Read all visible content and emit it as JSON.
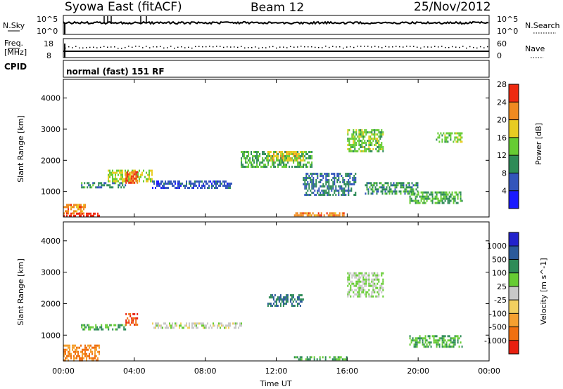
{
  "header": {
    "title": "Syowa East (fitACF)",
    "beam": "Beam 12",
    "date": "25/Nov/2012"
  },
  "noise_panel": {
    "left_label": "N.Sky",
    "right_label": "N.Search",
    "tick_top_left": "10^5",
    "tick_bottom_left": "10^0",
    "tick_top_right": "10^5",
    "tick_bottom_right": "10^0"
  },
  "freq_panel": {
    "left_label_top": "Freq.",
    "left_label_unit": "[MHz]",
    "tick_top_left": "18",
    "tick_bottom_left": "8",
    "right_label": "Nave",
    "tick_top_right": "60",
    "tick_bottom_right": "0"
  },
  "cpid": {
    "label": "CPID",
    "mode": "normal (fast) 151 RF"
  },
  "x_axis": {
    "label": "Time UT",
    "ticks": [
      "00:00",
      "04:00",
      "08:00",
      "12:00",
      "16:00",
      "20:00",
      "00:00"
    ]
  },
  "power_panel": {
    "ylabel": "Slant Range [km]",
    "yticks": [
      "1000",
      "2000",
      "3000",
      "4000"
    ],
    "colorbar_label": "Power [dB]",
    "colorbar_ticks": [
      "4",
      "8",
      "12",
      "16",
      "20",
      "24",
      "28"
    ],
    "colorbar_colors": [
      "#1a1aff",
      "#3355bb",
      "#2e8b57",
      "#66cc33",
      "#e8cc22",
      "#f08a20",
      "#ee2a10"
    ]
  },
  "velocity_panel": {
    "ylabel": "Slant Range [km]",
    "yticks": [
      "1000",
      "2000",
      "3000",
      "4000"
    ],
    "colorbar_label": "Velocity [m s^-1]",
    "colorbar_ticks": [
      "1000",
      "500",
      "100",
      "25",
      "-25",
      "-100",
      "-500",
      "-1000"
    ],
    "colorbar_colors": [
      "#2222cc",
      "#2b5a9a",
      "#2e8b57",
      "#66cc33",
      "#c8c8c8",
      "#f2d060",
      "#f5a030",
      "#f07010",
      "#e82010"
    ]
  },
  "chart_data": {
    "type": "heatmap",
    "title": "Syowa East (fitACF)",
    "xlabel": "Time UT",
    "ylabel": "Slant Range [km]",
    "x_range": [
      "00:00",
      "00:00"
    ],
    "ylim": [
      180,
      4600
    ],
    "series": [
      {
        "name": "Power [dB]",
        "regions": [
          {
            "t0": 0.0,
            "t1": 2.0,
            "r0": 230,
            "r1": 320,
            "value": 28
          },
          {
            "t0": 0.0,
            "t1": 1.2,
            "r0": 320,
            "r1": 600,
            "value": 22
          },
          {
            "t0": 1.0,
            "t1": 3.5,
            "r0": 1150,
            "r1": 1300,
            "value": 10
          },
          {
            "t0": 2.5,
            "t1": 5.0,
            "r0": 1300,
            "r1": 1700,
            "value": 16
          },
          {
            "t0": 3.5,
            "t1": 4.2,
            "r0": 1300,
            "r1": 1650,
            "value": 24
          },
          {
            "t0": 5.0,
            "t1": 9.5,
            "r0": 1100,
            "r1": 1350,
            "value": 6
          },
          {
            "t0": 10.0,
            "t1": 14.0,
            "r0": 1800,
            "r1": 2300,
            "value": 12
          },
          {
            "t0": 11.5,
            "t1": 13.5,
            "r0": 2000,
            "r1": 2300,
            "value": 18
          },
          {
            "t0": 13.0,
            "t1": 16.0,
            "r0": 230,
            "r1": 330,
            "value": 22
          },
          {
            "t0": 13.5,
            "t1": 16.5,
            "r0": 900,
            "r1": 1600,
            "value": 8
          },
          {
            "t0": 16.0,
            "t1": 18.0,
            "r0": 2300,
            "r1": 3000,
            "value": 14
          },
          {
            "t0": 17.0,
            "t1": 20.0,
            "r0": 900,
            "r1": 1300,
            "value": 10
          },
          {
            "t0": 19.5,
            "t1": 22.5,
            "r0": 600,
            "r1": 1000,
            "value": 12
          },
          {
            "t0": 21.0,
            "t1": 22.5,
            "r0": 2600,
            "r1": 2900,
            "value": 14
          }
        ]
      },
      {
        "name": "Velocity [m s^-1]",
        "regions": [
          {
            "t0": 0.0,
            "t1": 2.0,
            "r0": 230,
            "r1": 700,
            "value": -500
          },
          {
            "t0": 1.0,
            "t1": 3.5,
            "r0": 1150,
            "r1": 1350,
            "value": 100
          },
          {
            "t0": 3.5,
            "t1": 4.2,
            "r0": 1300,
            "r1": 1700,
            "value": -1000
          },
          {
            "t0": 5.0,
            "t1": 10.0,
            "r0": 1200,
            "r1": 1400,
            "value": 0
          },
          {
            "t0": 11.5,
            "t1": 13.5,
            "r0": 1900,
            "r1": 2300,
            "value": 500
          },
          {
            "t0": 13.0,
            "t1": 16.0,
            "r0": 230,
            "r1": 330,
            "value": 100
          },
          {
            "t0": 16.0,
            "t1": 18.0,
            "r0": 2200,
            "r1": 3000,
            "value": 25
          },
          {
            "t0": 19.5,
            "t1": 22.5,
            "r0": 600,
            "r1": 1000,
            "value": 100
          }
        ]
      }
    ]
  }
}
